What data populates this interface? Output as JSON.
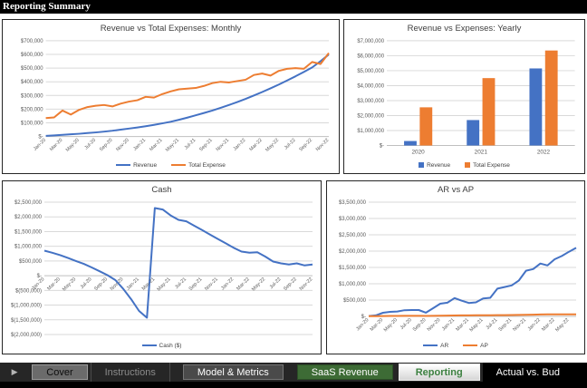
{
  "header": {
    "title": "Reporting Summary"
  },
  "colors": {
    "series_blue": "#4472C4",
    "series_orange": "#ED7D31",
    "gridline": "#D9D9D9",
    "axis_text": "#595959",
    "chart_title_text": "#404040",
    "tab_green": "#3D6B35",
    "active_tab_text": "#3C8140"
  },
  "chart_data": [
    {
      "id": "monthly",
      "type": "line",
      "title": "Revenue vs Total Expenses: Monthly",
      "x_tick_labels": [
        "Jan-20",
        "Mar-20",
        "May-20",
        "Jul-20",
        "Sep-20",
        "Nov-20",
        "Jan-21",
        "Mar-21",
        "May-21",
        "Jul-21",
        "Sep-21",
        "Nov-21",
        "Jan-22",
        "Mar-22",
        "May-22",
        "Jul-22",
        "Sep-22",
        "Nov-22"
      ],
      "x_tick_every": 2,
      "ylim": [
        0,
        700000
      ],
      "y_tick_values": [
        0,
        100000,
        200000,
        300000,
        400000,
        500000,
        600000,
        700000
      ],
      "y_tick_labels": [
        "$-",
        "$100,000",
        "$200,000",
        "$300,000",
        "$400,000",
        "$500,000",
        "$600,000",
        "$700,000"
      ],
      "legend_position": "bottom",
      "series": [
        {
          "name": "Revenue",
          "color": "#4472C4",
          "values": [
            5000,
            8000,
            12000,
            16000,
            20000,
            25000,
            30000,
            36000,
            42000,
            50000,
            58000,
            66000,
            75000,
            85000,
            96000,
            108000,
            122000,
            138000,
            155000,
            172000,
            190000,
            210000,
            230000,
            252000,
            275000,
            300000,
            325000,
            352000,
            380000,
            410000,
            440000,
            472000,
            505000,
            550000,
            600000
          ]
        },
        {
          "name": "Total Expense",
          "color": "#ED7D31",
          "values": [
            135000,
            140000,
            190000,
            160000,
            195000,
            215000,
            225000,
            230000,
            220000,
            240000,
            255000,
            265000,
            290000,
            285000,
            310000,
            330000,
            345000,
            350000,
            355000,
            370000,
            390000,
            400000,
            395000,
            405000,
            415000,
            450000,
            460000,
            445000,
            480000,
            495000,
            500000,
            495000,
            545000,
            530000,
            610000
          ]
        }
      ]
    },
    {
      "id": "yearly",
      "type": "bar",
      "title": "Revenue vs Expenses: Yearly",
      "categories": [
        "2020",
        "2021",
        "2022"
      ],
      "ylim": [
        0,
        7000000
      ],
      "y_tick_values": [
        0,
        1000000,
        2000000,
        3000000,
        4000000,
        5000000,
        6000000,
        7000000
      ],
      "y_tick_labels": [
        "$-",
        "$1,000,000",
        "$2,000,000",
        "$3,000,000",
        "$4,000,000",
        "$5,000,000",
        "$6,000,000",
        "$7,000,000"
      ],
      "legend_position": "bottom",
      "series": [
        {
          "name": "Revenue",
          "color": "#4472C4",
          "values": [
            300000,
            1700000,
            5150000
          ]
        },
        {
          "name": "Total Expense",
          "color": "#ED7D31",
          "values": [
            2550000,
            4500000,
            6350000
          ]
        }
      ]
    },
    {
      "id": "cash",
      "type": "line",
      "title": "Cash",
      "x_tick_labels": [
        "Jan-20",
        "Mar-20",
        "May-20",
        "Jul-20",
        "Sep-20",
        "Nov-20",
        "Jan-21",
        "Mar-21",
        "May-21",
        "Jul-21",
        "Sep-21",
        "Nov-21",
        "Jan-22",
        "Mar-22",
        "May-22",
        "Jul-22",
        "Sep-22",
        "Nov-22"
      ],
      "x_tick_every": 2,
      "x_labels_at_zero": true,
      "ylim": [
        -2000000,
        2500000
      ],
      "y_tick_values": [
        -2000000,
        -1500000,
        -1000000,
        -500000,
        0,
        500000,
        1000000,
        1500000,
        2000000,
        2500000
      ],
      "y_tick_labels": [
        "$(2,000,000)",
        "$(1,500,000)",
        "$(1,000,000)",
        "$(500,000)",
        "$-",
        "$500,000",
        "$1,000,000",
        "$1,500,000",
        "$2,000,000",
        "$2,500,000"
      ],
      "legend_position": "bottom",
      "series": [
        {
          "name": "Cash ($)",
          "color": "#4472C4",
          "values": [
            850000,
            780000,
            700000,
            600000,
            500000,
            400000,
            280000,
            150000,
            20000,
            -150000,
            -450000,
            -800000,
            -1200000,
            -1430000,
            2300000,
            2250000,
            2050000,
            1900000,
            1850000,
            1700000,
            1550000,
            1400000,
            1250000,
            1100000,
            950000,
            820000,
            780000,
            800000,
            650000,
            480000,
            420000,
            380000,
            420000,
            350000,
            380000
          ]
        }
      ]
    },
    {
      "id": "arap",
      "type": "line",
      "title": "AR vs AP",
      "x_tick_labels": [
        "Jan-20",
        "Mar-20",
        "May-20",
        "Jul-20",
        "Sep-20",
        "Nov-20",
        "Jan-21",
        "Mar-21",
        "May-21",
        "Jul-21",
        "Sep-21",
        "Nov-21",
        "Jan-22",
        "Mar-22",
        "May-22"
      ],
      "x_tick_every": 2,
      "ylim": [
        0,
        3500000
      ],
      "y_tick_values": [
        0,
        500000,
        1000000,
        1500000,
        2000000,
        2500000,
        3000000,
        3500000
      ],
      "y_tick_labels": [
        "$-",
        "$500,000",
        "$1,000,000",
        "$1,500,000",
        "$2,000,000",
        "$2,500,000",
        "$3,000,000",
        "$3,500,000"
      ],
      "legend_position": "bottom",
      "series": [
        {
          "name": "AR",
          "color": "#4472C4",
          "values": [
            10000,
            30000,
            110000,
            140000,
            150000,
            190000,
            195000,
            195000,
            115000,
            250000,
            390000,
            420000,
            560000,
            480000,
            410000,
            430000,
            550000,
            570000,
            850000,
            900000,
            950000,
            1100000,
            1400000,
            1450000,
            1620000,
            1560000,
            1750000,
            1850000,
            1980000,
            2100000
          ]
        },
        {
          "name": "AP",
          "color": "#ED7D31",
          "values": [
            5000,
            8000,
            12000,
            15000,
            15000,
            18000,
            18000,
            18000,
            15000,
            18000,
            22000,
            25000,
            28000,
            30000,
            30000,
            32000,
            35000,
            35000,
            38000,
            40000,
            42000,
            45000,
            48000,
            52000,
            58000,
            60000,
            62000,
            63000,
            64000,
            65000
          ]
        }
      ]
    }
  ],
  "tabbar": {
    "scroll_icon": "▶",
    "tabs": [
      {
        "label": "Cover"
      },
      {
        "label": "Instructions"
      },
      {
        "label": "Model & Metrics"
      },
      {
        "label": "SaaS Revenue"
      },
      {
        "label": "Reporting",
        "active": true
      },
      {
        "label": "Actual vs. Bud"
      }
    ]
  }
}
